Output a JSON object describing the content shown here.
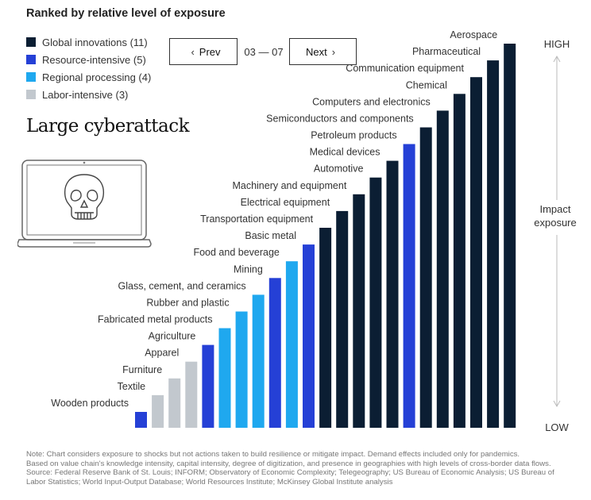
{
  "header": {
    "title": "Ranked by relative level of exposure"
  },
  "legend": [
    {
      "label": "Global innovations (11)",
      "color": "#0b1e33"
    },
    {
      "label": "Resource-intensive (5)",
      "color": "#2540d6"
    },
    {
      "label": "Regional processing (4)",
      "color": "#1fa8ef"
    },
    {
      "label": "Labor-intensive (3)",
      "color": "#c2c8ce"
    }
  ],
  "pagination": {
    "prev_label": "Prev",
    "next_label": "Next",
    "counter": "03 — 07"
  },
  "scenario": {
    "title": "Large cyberattack",
    "icon": "skull-laptop-icon"
  },
  "axis": {
    "high_label": "HIGH",
    "low_label": "LOW",
    "axis_title_line1": "Impact",
    "axis_title_line2": "exposure"
  },
  "chart_data": {
    "type": "bar",
    "title": "Ranked by relative level of exposure",
    "ylabel": "Impact exposure",
    "ylim": [
      0,
      23
    ],
    "grid": false,
    "legend_position": "top-left",
    "categories": [
      "Wooden products",
      "Textile",
      "Furniture",
      "Apparel",
      "Agriculture",
      "Fabricated metal products",
      "Rubber and plastic",
      "Glass, cement, and ceramics",
      "Mining",
      "Food and beverage",
      "Basic metal",
      "Transportation equipment",
      "Electrical equipment",
      "Machinery and equipment",
      "Automotive",
      "Medical devices",
      "Petroleum products",
      "Semiconductors and components",
      "Computers and electronics",
      "Chemical",
      "Communication equipment",
      "Pharmaceutical",
      "Aerospace"
    ],
    "values": [
      1,
      2,
      3,
      4,
      5,
      6,
      7,
      8,
      9,
      10,
      11,
      12,
      13,
      14,
      15,
      16,
      17,
      18,
      19,
      20,
      21,
      22,
      23
    ],
    "groups": [
      "Resource-intensive",
      "Labor-intensive",
      "Labor-intensive",
      "Labor-intensive",
      "Resource-intensive",
      "Regional processing",
      "Regional processing",
      "Regional processing",
      "Resource-intensive",
      "Regional processing",
      "Resource-intensive",
      "Global innovations",
      "Global innovations",
      "Global innovations",
      "Global innovations",
      "Global innovations",
      "Resource-intensive",
      "Global innovations",
      "Global innovations",
      "Global innovations",
      "Global innovations",
      "Global innovations",
      "Global innovations"
    ],
    "group_colors": {
      "Global innovations": "#0b1e33",
      "Resource-intensive": "#2540d6",
      "Regional processing": "#1fa8ef",
      "Labor-intensive": "#c2c8ce"
    }
  },
  "notes": [
    "Note: Chart considers exposure to shocks but not actions taken to build resilience or mitigate impact. Demand effects included only for pandemics.",
    "Based on value chain's knowledge intensity, capital intensity, degree of digitization, and presence in geographies with high levels of cross-border data flows.",
    "Source: Federal Reserve Bank of St. Louis; INFORM; Observatory of Economic Complexity; Telegeography; US Bureau of Economic Analysis; US Bureau of",
    "Labor Statistics; World Input-Output Database; World Resources Institute; McKinsey Global Institute analysis"
  ]
}
